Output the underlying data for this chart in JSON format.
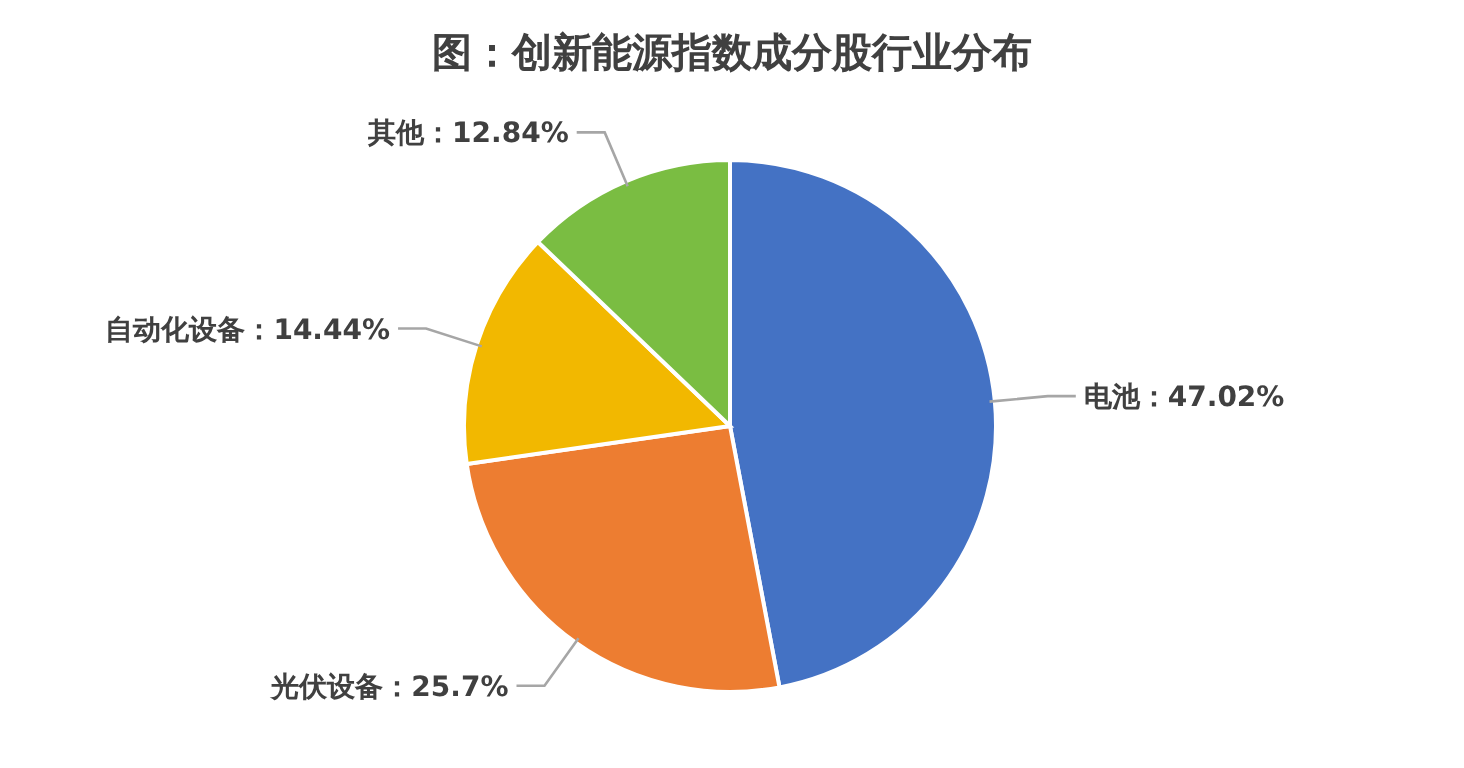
{
  "chart_data": {
    "type": "pie",
    "title": "图：创新能源指数成分股行业分布",
    "categories": [
      "电池",
      "光伏设备",
      "自动化设备",
      "其他"
    ],
    "values": [
      47.02,
      25.7,
      14.44,
      12.84
    ],
    "colors": [
      "#4472c4",
      "#ed7d31",
      "#f2b800",
      "#7abd42"
    ],
    "value_labels": [
      "47.02%",
      "25.7%",
      "14.44%",
      "12.84%"
    ]
  }
}
